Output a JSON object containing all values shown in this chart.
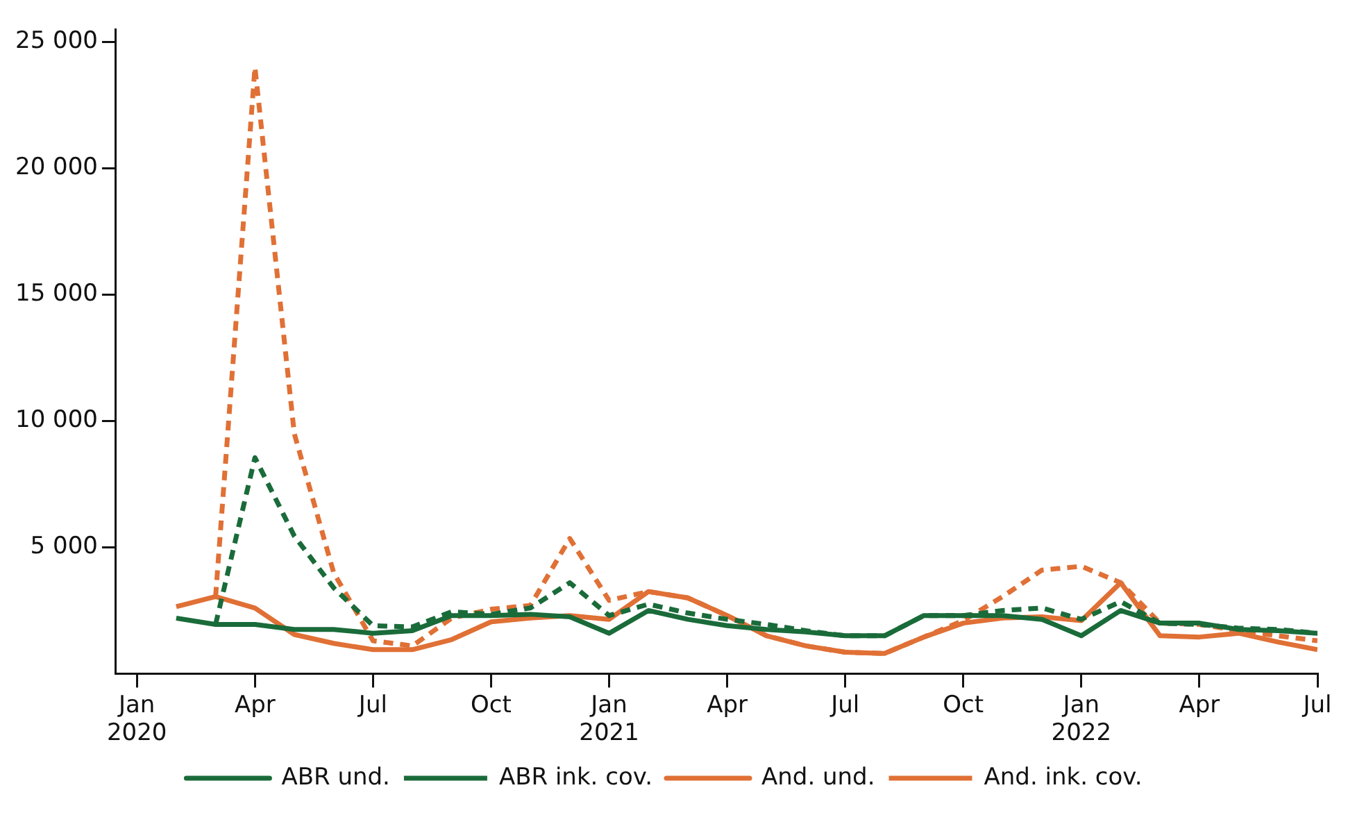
{
  "chart_data": {
    "type": "line",
    "x": [
      "2020-02",
      "2020-03",
      "2020-04",
      "2020-05",
      "2020-06",
      "2020-07",
      "2020-08",
      "2020-09",
      "2020-10",
      "2020-11",
      "2020-12",
      "2021-01",
      "2021-02",
      "2021-03",
      "2021-04",
      "2021-05",
      "2021-06",
      "2021-07",
      "2021-08",
      "2021-09",
      "2021-10",
      "2021-11",
      "2021-12",
      "2022-01",
      "2022-02",
      "2022-03",
      "2022-04",
      "2022-05",
      "2022-06",
      "2022-07"
    ],
    "series": [
      {
        "name": "ABR und.",
        "color": "#1a6b3a",
        "line_style": "solid",
        "values": [
          2200,
          1950,
          1950,
          1750,
          1750,
          1600,
          1700,
          2300,
          2300,
          2350,
          2250,
          1600,
          2500,
          2150,
          1900,
          1750,
          1650,
          1500,
          1500,
          2300,
          2300,
          2300,
          2150,
          1500,
          2500,
          2000,
          2000,
          1750,
          1700,
          1600
        ]
      },
      {
        "name": "ABR ink. cov.",
        "color": "#1a6b3a",
        "line_style": "dashed",
        "values": [
          null,
          1950,
          8550,
          5450,
          3400,
          1900,
          1850,
          2450,
          2350,
          2600,
          3600,
          2300,
          2750,
          2400,
          2150,
          1950,
          1700,
          1500,
          1500,
          2300,
          2300,
          2500,
          2600,
          2150,
          2850,
          2000,
          1950,
          1800,
          1750,
          1600
        ]
      },
      {
        "name": "And. und.",
        "color": "#e07035",
        "line_style": "solid",
        "values": [
          2650,
          3050,
          2600,
          1550,
          1200,
          950,
          950,
          1350,
          2050,
          2200,
          2300,
          2150,
          3250,
          3000,
          2300,
          1500,
          1100,
          850,
          800,
          1450,
          2000,
          2200,
          2250,
          2100,
          3600,
          1500,
          1450,
          1600,
          1250,
          950
        ]
      },
      {
        "name": "And. ink. cov.",
        "color": "#e07035",
        "line_style": "dashed",
        "values": [
          null,
          3050,
          24000,
          9500,
          4000,
          1300,
          1100,
          2200,
          2550,
          2700,
          5350,
          2900,
          3250,
          3000,
          2300,
          1500,
          1100,
          850,
          800,
          1450,
          2100,
          3050,
          4100,
          4250,
          3600,
          2000,
          1950,
          1700,
          1500,
          1300
        ]
      }
    ],
    "xlim": [
      "2019-12-15",
      "2022-07-01"
    ],
    "xticks": [
      {
        "value": "2020-01",
        "label": "Jan 2020"
      },
      {
        "value": "2020-04",
        "label": "Apr"
      },
      {
        "value": "2020-07",
        "label": "Jul"
      },
      {
        "value": "2020-10",
        "label": "Oct"
      },
      {
        "value": "2021-01",
        "label": "Jan 2021"
      },
      {
        "value": "2021-04",
        "label": "Apr"
      },
      {
        "value": "2021-07",
        "label": "Jul"
      },
      {
        "value": "2021-10",
        "label": "Oct"
      },
      {
        "value": "2022-01",
        "label": "Jan 2022"
      },
      {
        "value": "2022-04",
        "label": "Apr"
      },
      {
        "value": "2022-07",
        "label": "Jul"
      }
    ],
    "ylim": [
      0,
      25500
    ],
    "yticks": [
      {
        "value": 5000,
        "label": "5 000"
      },
      {
        "value": 10000,
        "label": "10 000"
      },
      {
        "value": 15000,
        "label": "15 000"
      },
      {
        "value": 20000,
        "label": "20 000"
      },
      {
        "value": 25000,
        "label": "25 000"
      }
    ],
    "grid": false,
    "legend": "bottom",
    "marker": "none"
  }
}
